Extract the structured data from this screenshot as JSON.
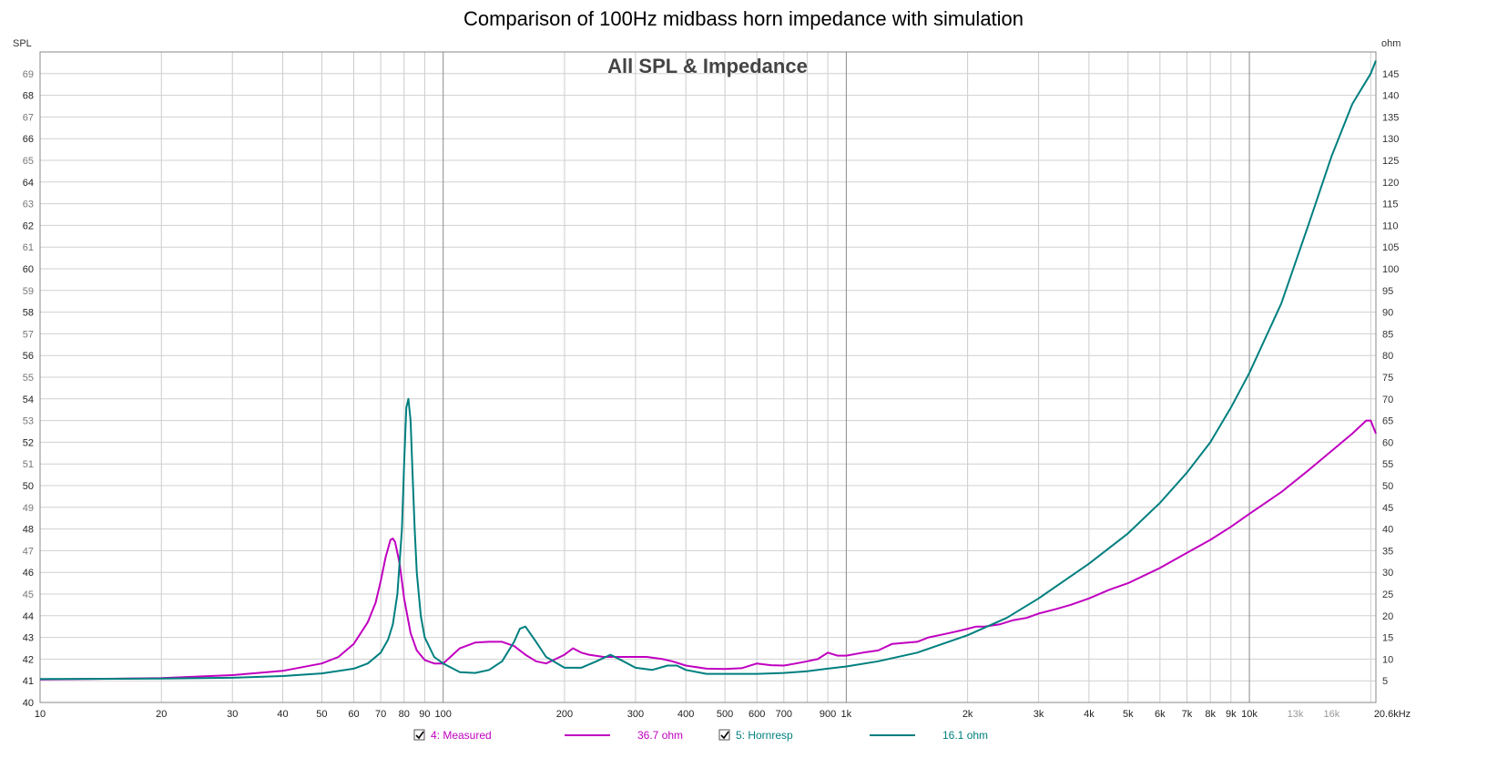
{
  "page_title": "Comparison of 100Hz midbass horn impedance with simulation",
  "chart_data": {
    "type": "line",
    "title": "All SPL & Impedance",
    "x_scale": "log",
    "xlim": [
      10,
      20600
    ],
    "x_tick_labels": [
      {
        "x": 10,
        "label": "10",
        "major": true
      },
      {
        "x": 20,
        "label": "20",
        "major": true
      },
      {
        "x": 30,
        "label": "30",
        "major": true
      },
      {
        "x": 40,
        "label": "40",
        "major": true
      },
      {
        "x": 50,
        "label": "50",
        "major": true
      },
      {
        "x": 60,
        "label": "60",
        "major": true
      },
      {
        "x": 70,
        "label": "70",
        "major": true
      },
      {
        "x": 80,
        "label": "80",
        "major": true
      },
      {
        "x": 90,
        "label": "90",
        "major": true
      },
      {
        "x": 100,
        "label": "100",
        "major": true
      },
      {
        "x": 200,
        "label": "200",
        "major": true
      },
      {
        "x": 300,
        "label": "300",
        "major": true
      },
      {
        "x": 400,
        "label": "400",
        "major": true
      },
      {
        "x": 500,
        "label": "500",
        "major": true
      },
      {
        "x": 600,
        "label": "600",
        "major": true
      },
      {
        "x": 700,
        "label": "700",
        "major": true
      },
      {
        "x": 900,
        "label": "900",
        "major": true
      },
      {
        "x": 1000,
        "label": "1k",
        "major": true
      },
      {
        "x": 2000,
        "label": "2k",
        "major": true
      },
      {
        "x": 3000,
        "label": "3k",
        "major": true
      },
      {
        "x": 4000,
        "label": "4k",
        "major": true
      },
      {
        "x": 5000,
        "label": "5k",
        "major": true
      },
      {
        "x": 6000,
        "label": "6k",
        "major": true
      },
      {
        "x": 7000,
        "label": "7k",
        "major": true
      },
      {
        "x": 8000,
        "label": "8k",
        "major": true
      },
      {
        "x": 9000,
        "label": "9k",
        "major": true
      },
      {
        "x": 10000,
        "label": "10k",
        "major": true
      },
      {
        "x": 13000,
        "label": "13k",
        "major": false
      },
      {
        "x": 16000,
        "label": "16k",
        "major": false
      },
      {
        "x": 20600,
        "label": "20.6kHz",
        "major": true
      }
    ],
    "left_axis": {
      "label": "SPL",
      "ylim": [
        40,
        70
      ],
      "ticks": [
        40,
        41,
        42,
        43,
        44,
        45,
        46,
        47,
        48,
        49,
        50,
        51,
        52,
        53,
        54,
        55,
        56,
        57,
        58,
        59,
        60,
        61,
        62,
        63,
        64,
        65,
        66,
        67,
        68,
        69
      ],
      "bold_ticks": [
        40,
        41,
        42,
        43,
        44,
        46,
        48,
        50,
        52,
        54,
        56,
        58,
        60,
        62,
        64,
        66,
        68
      ]
    },
    "right_axis": {
      "label": "ohm",
      "ylim": [
        0,
        150
      ],
      "ticks": [
        5,
        10,
        15,
        20,
        25,
        30,
        35,
        40,
        45,
        50,
        55,
        60,
        65,
        70,
        75,
        80,
        85,
        90,
        95,
        100,
        105,
        110,
        115,
        120,
        125,
        130,
        135,
        140,
        145
      ]
    },
    "grid": true,
    "series": [
      {
        "name": "4: Measured",
        "legend_value": "36.7 ohm",
        "color": "#c000c0",
        "axis": "right",
        "x": [
          10,
          20,
          30,
          40,
          50,
          55,
          60,
          65,
          68,
          70,
          72,
          74,
          75,
          76,
          78,
          80,
          83,
          86,
          90,
          95,
          100,
          110,
          120,
          130,
          140,
          150,
          160,
          170,
          180,
          190,
          200,
          210,
          220,
          230,
          250,
          270,
          300,
          320,
          350,
          370,
          400,
          450,
          500,
          550,
          600,
          650,
          700,
          750,
          800,
          850,
          900,
          950,
          1000,
          1100,
          1200,
          1300,
          1500,
          1600,
          1700,
          1800,
          1900,
          2000,
          2100,
          2200,
          2400,
          2600,
          2800,
          3000,
          3300,
          3600,
          4000,
          4500,
          5000,
          6000,
          7000,
          8000,
          9000,
          10000,
          12000,
          14000,
          16000,
          18000,
          19500,
          20000,
          20600
        ],
        "y": [
          5.3,
          5.6,
          6.3,
          7.3,
          9.0,
          10.5,
          13.5,
          18.5,
          23.0,
          28.0,
          33.5,
          37.5,
          37.8,
          37.0,
          32.0,
          24.0,
          16.0,
          12.0,
          9.8,
          9.0,
          9.0,
          12.5,
          13.8,
          14.0,
          14.0,
          13.0,
          11.0,
          9.5,
          9.0,
          10.0,
          11.0,
          12.5,
          11.5,
          11.0,
          10.5,
          10.5,
          10.5,
          10.5,
          10.0,
          9.5,
          8.5,
          7.8,
          7.7,
          7.9,
          9.0,
          8.6,
          8.5,
          9.0,
          9.5,
          10.0,
          11.5,
          10.8,
          10.8,
          11.5,
          12.0,
          13.5,
          14.0,
          15.0,
          15.5,
          16.0,
          16.5,
          17.0,
          17.5,
          17.5,
          18.0,
          19.0,
          19.5,
          20.5,
          21.5,
          22.5,
          24.0,
          26.0,
          27.5,
          31.0,
          34.5,
          37.5,
          40.5,
          43.5,
          48.5,
          53.5,
          58.0,
          62.0,
          65.0,
          65.0,
          62.0
        ]
      },
      {
        "name": "5: Hornresp",
        "legend_value": "16.1 ohm",
        "color": "#007f7f",
        "axis": "right",
        "x": [
          10,
          20,
          30,
          40,
          50,
          60,
          65,
          70,
          73,
          75,
          77,
          79,
          80,
          81,
          82,
          83,
          84,
          85,
          86,
          88,
          90,
          95,
          100,
          110,
          120,
          130,
          140,
          150,
          155,
          160,
          170,
          180,
          200,
          220,
          240,
          260,
          280,
          300,
          330,
          360,
          380,
          400,
          450,
          500,
          550,
          600,
          700,
          800,
          900,
          1000,
          1200,
          1500,
          2000,
          2500,
          3000,
          4000,
          5000,
          6000,
          7000,
          8000,
          9000,
          10000,
          12000,
          14000,
          16000,
          18000,
          20000,
          20600
        ],
        "y": [
          5.4,
          5.5,
          5.7,
          6.1,
          6.7,
          7.8,
          9.0,
          11.5,
          14.5,
          18.0,
          25.0,
          40.0,
          55.0,
          68.0,
          70.0,
          65.0,
          52.0,
          40.0,
          30.0,
          20.0,
          15.0,
          10.5,
          9.0,
          7.0,
          6.8,
          7.5,
          9.5,
          14.0,
          17.0,
          17.5,
          14.0,
          10.5,
          8.0,
          8.0,
          9.5,
          11.0,
          9.5,
          8.0,
          7.5,
          8.5,
          8.5,
          7.5,
          6.6,
          6.6,
          6.6,
          6.6,
          6.8,
          7.2,
          7.8,
          8.3,
          9.5,
          11.5,
          15.5,
          19.5,
          24.0,
          32.0,
          39.0,
          46.0,
          53.0,
          60.0,
          68.0,
          76.0,
          92.0,
          110.0,
          126.0,
          138.0,
          145.0,
          148.0
        ]
      }
    ]
  },
  "legend": {
    "items": [
      {
        "label": "4: Measured",
        "value": "36.7 ohm",
        "checked": true,
        "color": "#c000c0"
      },
      {
        "label": "5: Hornresp",
        "value": "16.1 ohm",
        "checked": true,
        "color": "#007f7f"
      }
    ]
  }
}
